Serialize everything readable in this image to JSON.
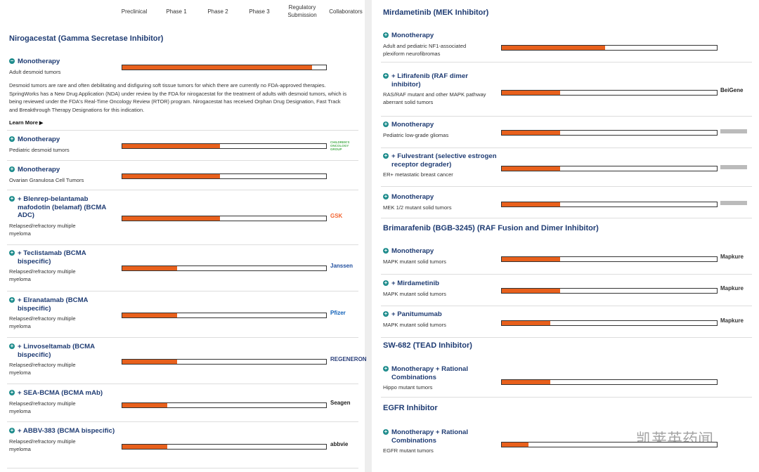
{
  "header": {
    "phases": [
      "Preclinical",
      "Phase 1",
      "Phase 2",
      "Phase 3",
      "Regulatory Submission"
    ],
    "collaborators": "Collaborators"
  },
  "sections": [
    {
      "title": "Nirogacestat (Gamma Secretase Inhibitor)",
      "programs": [
        {
          "name": "Monotherapy",
          "indication": "Adult desmoid tumors",
          "progress": 4.66,
          "description": "Desmoid tumors are rare and often debilitating and disfiguring soft tissue tumors for which there are currently no FDA-approved therapies. SpringWorks has a New Drug Application (NDA) under review by the FDA for nirogacestat for the treatment of adults with desmoid tumors, which is being reviewed under the FDA's Real-Time Oncology Review (RTOR) program. Nirogacestat has received Orphan Drug Designation, Fast Track and Breakthrough Therapy Designations for this indication.",
          "learn_more": "Learn More"
        },
        {
          "name": "Monotherapy",
          "indication": "Pediatric desmoid tumors",
          "progress": 2.4,
          "collaborator": "CHILDREN'S ONCOLOGY GROUP",
          "collaborator_color": "#4caf50"
        },
        {
          "name": "Monotherapy",
          "indication": "Ovarian Granulosa Cell Tumors",
          "progress": 2.4
        },
        {
          "name": "+ Blenrep-belantamab mafodotin (belamaf) (BCMA ADC)",
          "indication": "Relapsed/refractory multiple myeloma",
          "progress": 2.4,
          "collaborator": "GSK",
          "collaborator_color": "#f36633"
        },
        {
          "name": "+ Teclistamab (BCMA bispecific)",
          "indication": "Relapsed/refractory multiple myeloma",
          "progress": 1.34,
          "collaborator": "Janssen",
          "collaborator_color": "#1f4e9e"
        },
        {
          "name": "+ Elranatamab (BCMA bispecific)",
          "indication": "Relapsed/refractory multiple myeloma",
          "progress": 1.34,
          "collaborator": "Pfizer",
          "collaborator_color": "#0d5fb8"
        },
        {
          "name": "+ Linvoseltamab (BCMA bispecific)",
          "indication": "Relapsed/refractory multiple myeloma",
          "progress": 1.34,
          "collaborator": "REGENERON",
          "collaborator_color": "#2a3f7a"
        },
        {
          "name": "+ SEA-BCMA (BCMA mAb)",
          "indication": "Relapsed/refractory multiple myeloma",
          "progress": 1.1,
          "collaborator": "Seagen",
          "collaborator_color": "#222222"
        },
        {
          "name": "+ ABBV-383 (BCMA bispecific)",
          "indication": "Relapsed/refractory multiple myeloma",
          "progress": 1.1,
          "collaborator": "abbvie",
          "collaborator_color": "#222222"
        }
      ]
    },
    {
      "title": "Mirdametinib (MEK Inhibitor)",
      "programs": [
        {
          "name": "Monotherapy",
          "indication": "Adult and pediatric NF1-associated plexiform neurofibromas",
          "progress": 2.4
        },
        {
          "name": "+ Lifirafenib (RAF dimer inhibitor)",
          "indication": "RAS/RAF mutant and other MAPK pathway aberrant solid tumors",
          "progress": 1.36,
          "collaborator": "BeiGene",
          "collaborator_color": "#222222"
        },
        {
          "name": "Monotherapy",
          "indication": "Pediatric low-grade gliomas",
          "progress": 1.36
        },
        {
          "name": "+ Fulvestrant (selective estrogen receptor degrader)",
          "indication": "ER+ metastatic breast cancer",
          "progress": 1.36
        },
        {
          "name": "Monotherapy",
          "indication": "MEK 1/2 mutant solid tumors",
          "progress": 1.36
        }
      ]
    },
    {
      "title": "Brimarafenib (BGB-3245) (RAF Fusion and Dimer Inhibitor)",
      "programs": [
        {
          "name": "Monotherapy",
          "indication": "MAPK mutant solid tumors",
          "progress": 1.36,
          "collaborator": "Mapkure",
          "collaborator_color": "#333333"
        },
        {
          "name": "+ Mirdametinib",
          "indication": "MAPK mutant solid tumors",
          "progress": 1.36,
          "collaborator": "Mapkure",
          "collaborator_color": "#333333"
        },
        {
          "name": "+ Panitumumab",
          "indication": "MAPK mutant solid tumors",
          "progress": 1.13,
          "collaborator": "Mapkure",
          "collaborator_color": "#333333"
        }
      ]
    },
    {
      "title": "SW-682 (TEAD Inhibitor)",
      "programs": [
        {
          "name": "Monotherapy + Rational Combinations",
          "indication": "Hippo mutant tumors",
          "progress": 1.13
        }
      ]
    },
    {
      "title": "EGFR Inhibitor",
      "programs": [
        {
          "name": "Monotherapy + Rational Combinations",
          "indication": "EGFR mutant tumors",
          "progress": 0.62
        }
      ]
    }
  ],
  "watermark": "凯莱英药闻"
}
